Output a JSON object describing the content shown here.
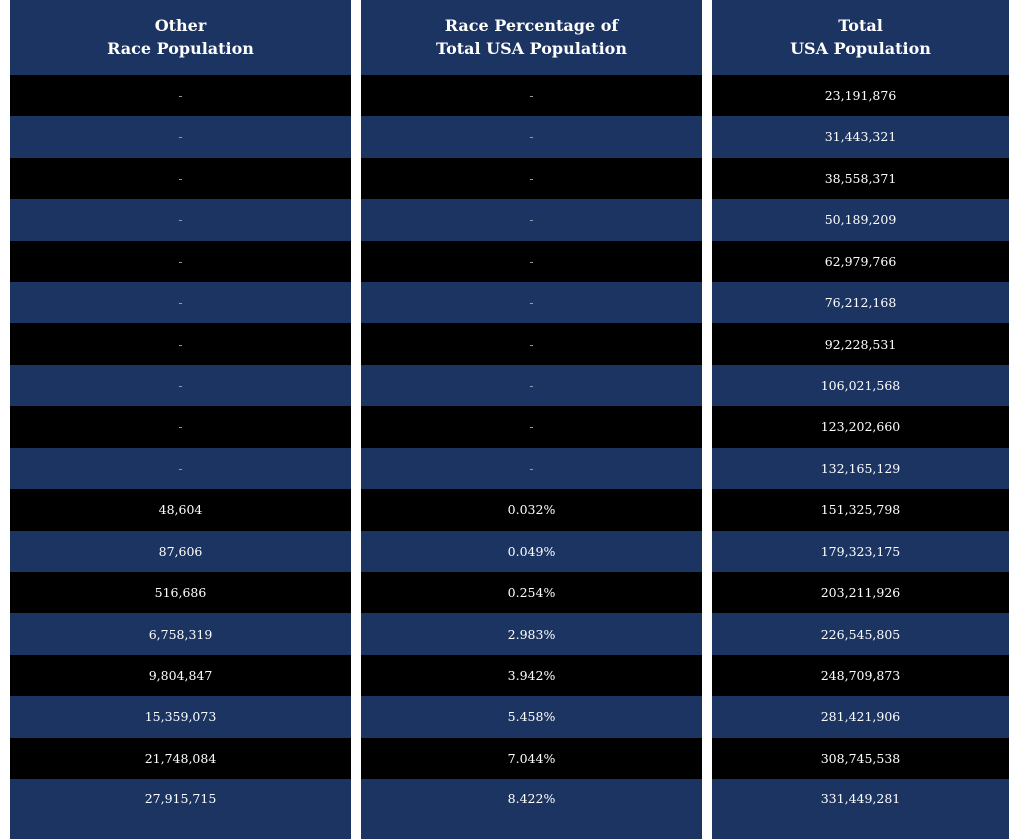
{
  "columns": [
    {
      "header": "Other\nRace Population",
      "values": [
        "-",
        "-",
        "-",
        "-",
        "-",
        "-",
        "-",
        "-",
        "-",
        "-",
        "48,604",
        "87,606",
        "516,686",
        "6,758,319",
        "9,804,847",
        "15,359,073",
        "21,748,084",
        "27,915,715"
      ]
    },
    {
      "header": "Race Percentage of\nTotal USA Population",
      "values": [
        "-",
        "-",
        "-",
        "-",
        "-",
        "-",
        "-",
        "-",
        "-",
        "-",
        "0.032%",
        "0.049%",
        "0.254%",
        "2.983%",
        "3.942%",
        "5.458%",
        "7.044%",
        "8.422%"
      ]
    },
    {
      "header": "Total\nUSA Population",
      "values": [
        "23,191,876",
        "31,443,321",
        "38,558,371",
        "50,189,209",
        "62,979,766",
        "76,212,168",
        "92,228,531",
        "106,021,568",
        "123,202,660",
        "132,165,129",
        "151,325,798",
        "179,323,175",
        "203,211,926",
        "226,545,805",
        "248,709,873",
        "281,421,906",
        "308,745,538",
        "331,449,281"
      ]
    }
  ],
  "colors": {
    "header_bg": "#1c3461",
    "row_dark": "#000000",
    "row_navy": "#1c3461"
  }
}
